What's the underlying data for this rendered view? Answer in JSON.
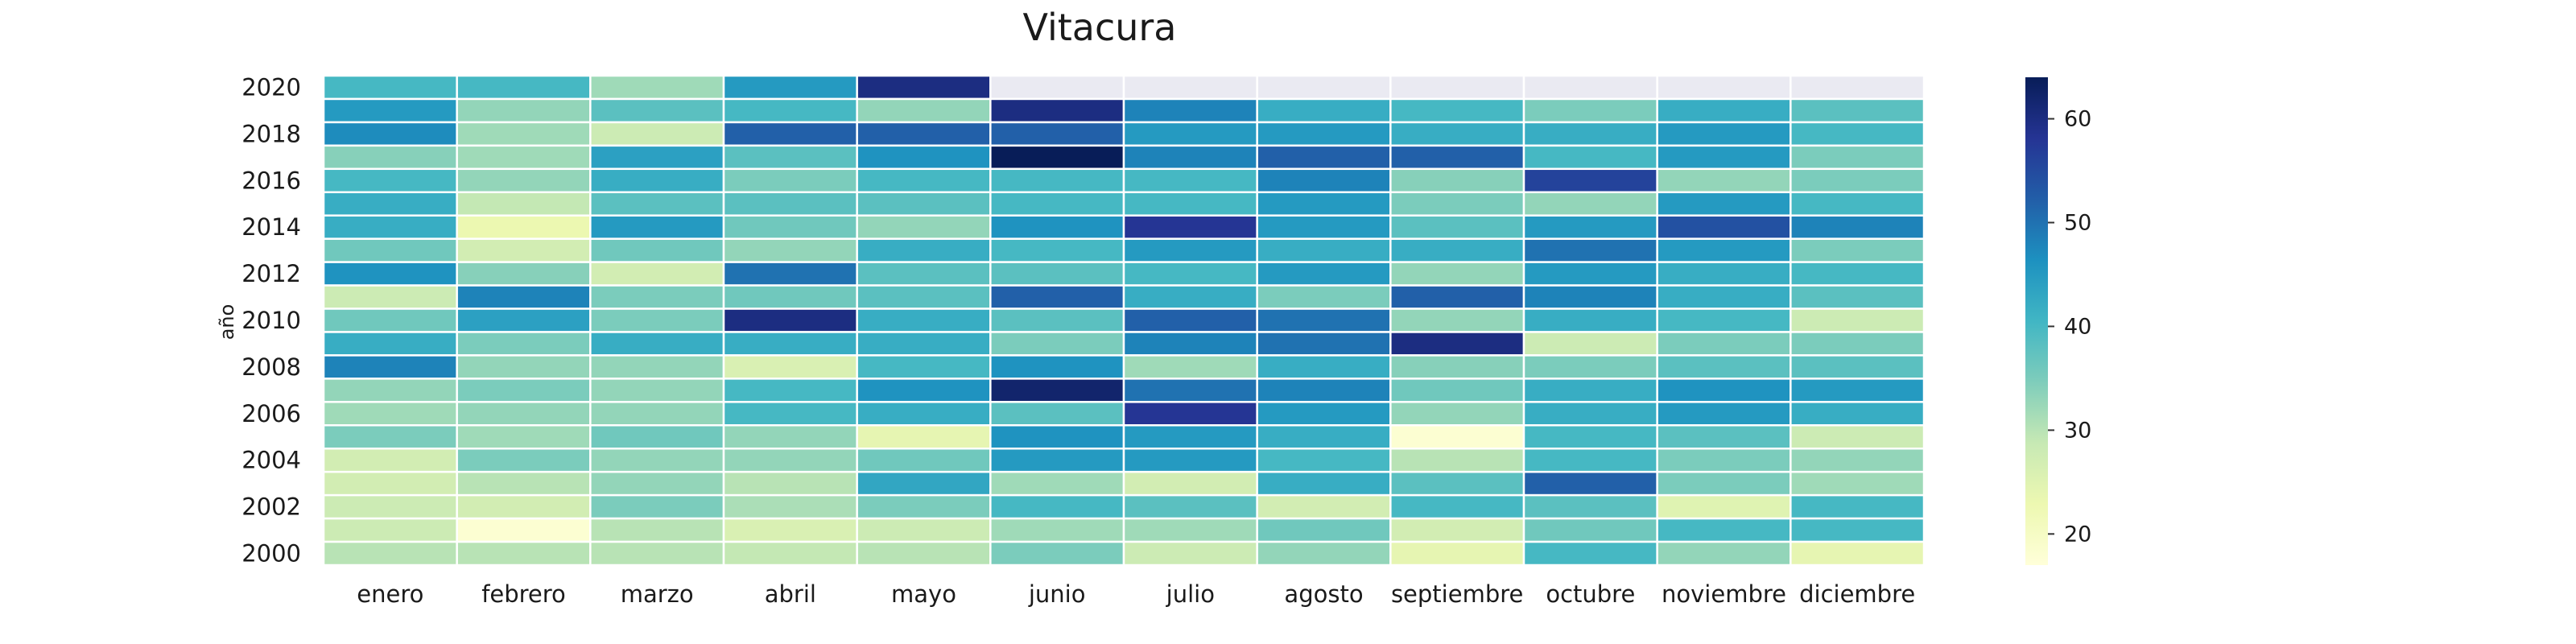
{
  "chart_data": {
    "type": "heatmap",
    "title": "Vitacura",
    "xlabel": "",
    "ylabel": "año",
    "months": [
      "enero",
      "febrero",
      "marzo",
      "abril",
      "mayo",
      "junio",
      "julio",
      "agosto",
      "septiembre",
      "octubre",
      "noviembre",
      "diciembre"
    ],
    "years": [
      2020,
      2019,
      2018,
      2017,
      2016,
      2015,
      2014,
      2013,
      2012,
      2011,
      2010,
      2009,
      2008,
      2007,
      2006,
      2005,
      2004,
      2003,
      2002,
      2001,
      2000
    ],
    "year_tick_labels": [
      "2020",
      "2018",
      "2016",
      "2014",
      "2012",
      "2010",
      "2008",
      "2006",
      "2004",
      "2002",
      "2000"
    ],
    "values": [
      [
        40,
        40,
        32,
        45,
        60,
        null,
        null,
        null,
        null,
        null,
        null,
        null
      ],
      [
        45,
        33,
        38,
        40,
        33,
        60,
        48,
        42,
        40,
        35,
        42,
        38
      ],
      [
        47,
        32,
        28,
        52,
        52,
        52,
        45,
        45,
        42,
        42,
        45,
        40
      ],
      [
        34,
        32,
        44,
        38,
        46,
        64,
        48,
        52,
        52,
        40,
        45,
        35
      ],
      [
        40,
        33,
        42,
        35,
        40,
        40,
        40,
        48,
        34,
        56,
        33,
        35
      ],
      [
        42,
        29,
        38,
        38,
        38,
        40,
        40,
        45,
        35,
        33,
        45,
        40
      ],
      [
        42,
        23,
        45,
        36,
        33,
        46,
        58,
        45,
        38,
        45,
        54,
        48
      ],
      [
        36,
        27,
        36,
        33,
        42,
        40,
        45,
        42,
        42,
        50,
        45,
        35
      ],
      [
        46,
        34,
        27,
        50,
        38,
        38,
        40,
        45,
        33,
        45,
        42,
        40
      ],
      [
        28,
        48,
        35,
        36,
        38,
        52,
        42,
        35,
        52,
        48,
        42,
        38
      ],
      [
        36,
        44,
        35,
        60,
        42,
        38,
        52,
        50,
        33,
        42,
        40,
        28
      ],
      [
        42,
        35,
        42,
        42,
        42,
        35,
        48,
        50,
        60,
        28,
        35,
        35
      ],
      [
        48,
        33,
        33,
        26,
        40,
        46,
        32,
        42,
        34,
        35,
        38,
        38
      ],
      [
        33,
        35,
        33,
        40,
        46,
        62,
        50,
        48,
        36,
        42,
        46,
        45
      ],
      [
        32,
        33,
        33,
        40,
        42,
        38,
        58,
        45,
        33,
        42,
        45,
        42
      ],
      [
        35,
        32,
        36,
        33,
        24,
        46,
        45,
        42,
        18,
        40,
        38,
        28
      ],
      [
        27,
        35,
        33,
        33,
        36,
        45,
        45,
        40,
        30,
        40,
        35,
        33
      ],
      [
        27,
        30,
        33,
        30,
        43,
        32,
        27,
        42,
        38,
        52,
        35,
        32
      ],
      [
        28,
        27,
        35,
        31,
        35,
        40,
        38,
        27,
        40,
        38,
        25,
        40
      ],
      [
        28,
        18,
        30,
        26,
        28,
        32,
        32,
        36,
        27,
        36,
        40,
        40
      ],
      [
        30,
        30,
        30,
        29,
        30,
        35,
        28,
        33,
        24,
        40,
        33,
        24
      ]
    ],
    "colorbar": {
      "vmin": 17,
      "vmax": 64,
      "ticks": [
        20,
        30,
        40,
        50,
        60
      ],
      "colormap": "YlGnBu",
      "stops": [
        "#ffffd9",
        "#edf8b1",
        "#c7e9b4",
        "#7fcdbb",
        "#41b6c4",
        "#1d91c0",
        "#225ea8",
        "#253494",
        "#081d58"
      ]
    },
    "missing_cell_color": "#eaeaf2",
    "grid": false
  }
}
